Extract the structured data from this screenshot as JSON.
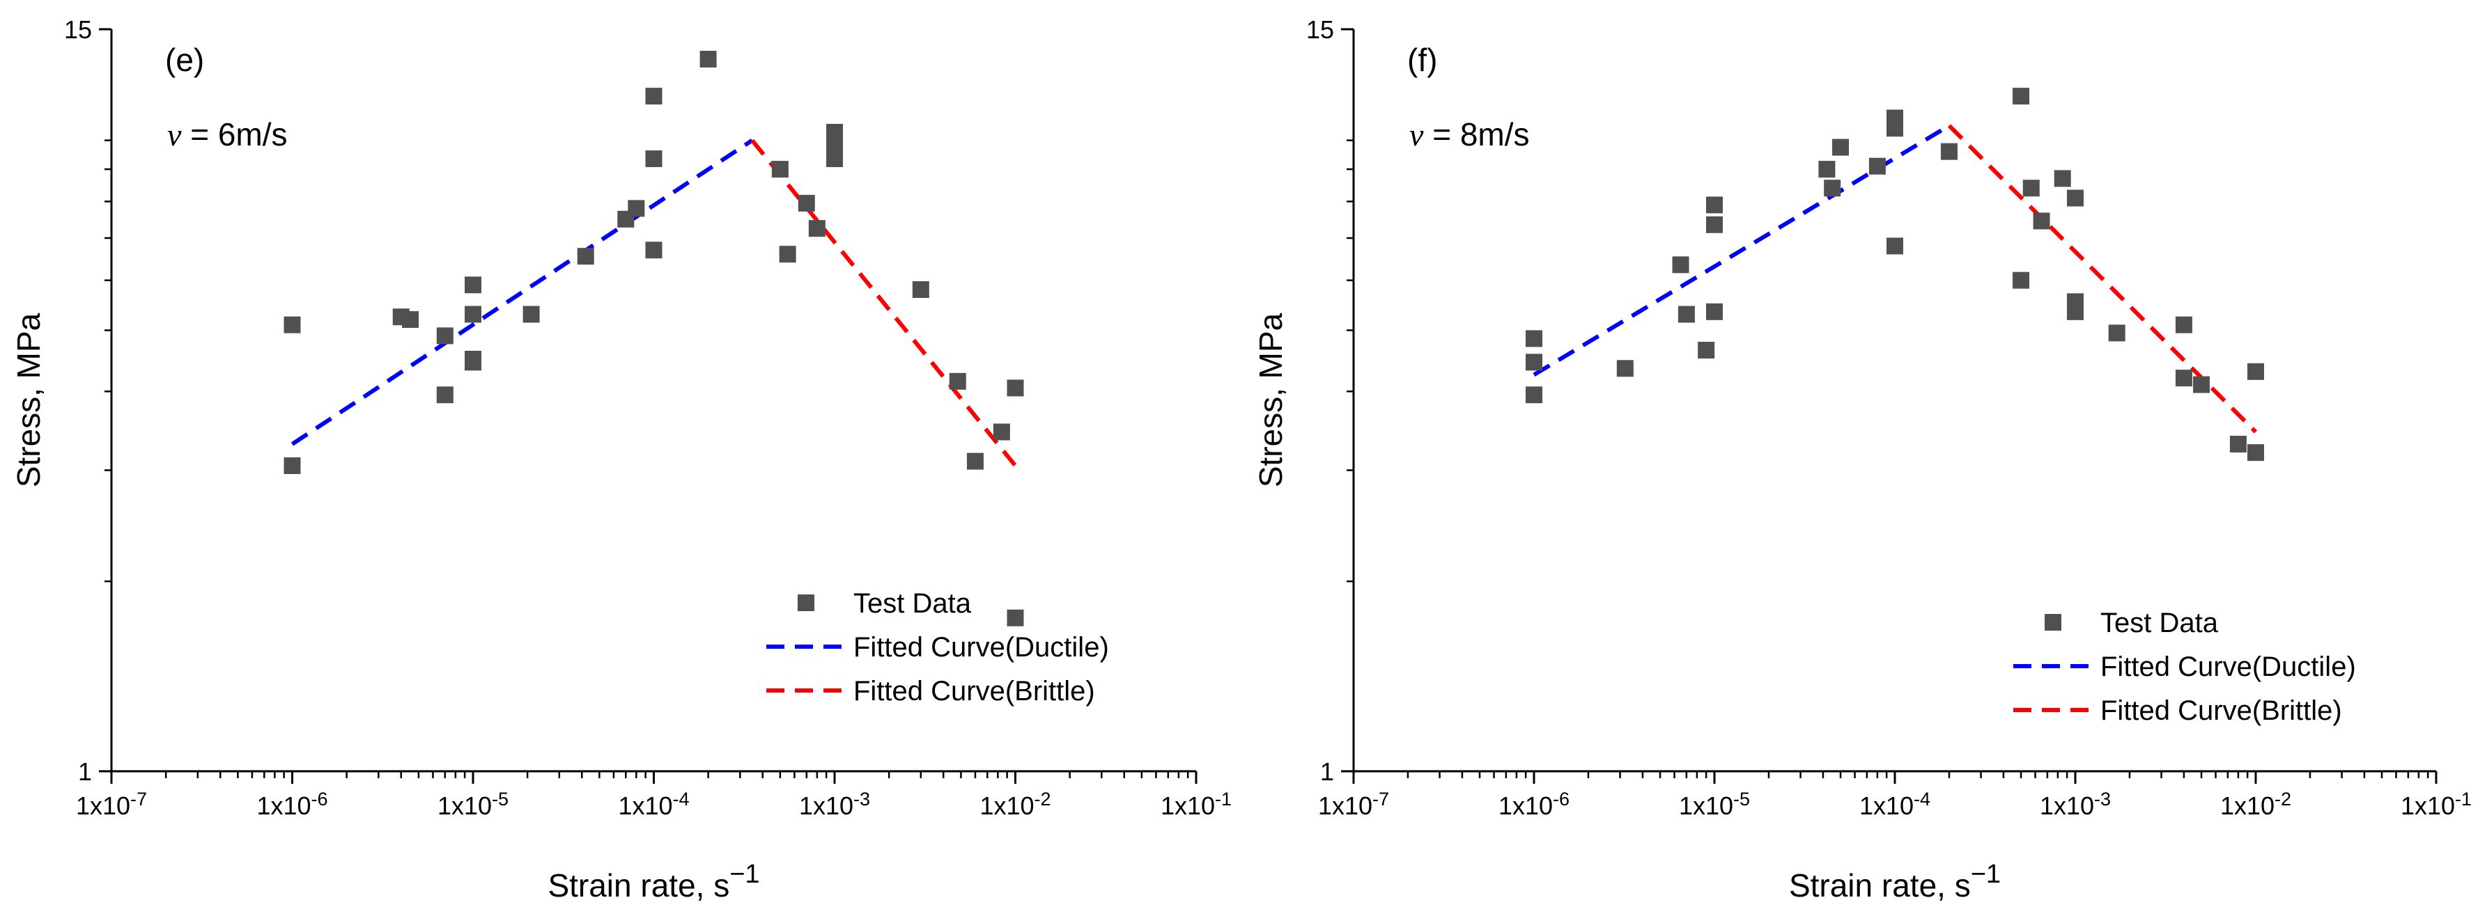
{
  "chart_data": [
    {
      "type": "scatter",
      "panel_label": "(e)",
      "velocity_symbol": "v",
      "velocity_text": " = 6m/s",
      "xlabel": "Strain rate, s",
      "xlabel_sup": "−1",
      "ylabel": "Stress, MPa",
      "xscale": "log",
      "yscale": "log",
      "xlim": [
        1e-07,
        0.1
      ],
      "ylim": [
        1,
        15
      ],
      "x_ticks": [
        1e-07,
        1e-06,
        1e-05,
        0.0001,
        0.001,
        0.01,
        0.1
      ],
      "x_tick_mantissa": [
        "1x10",
        "1x10",
        "1x10",
        "1x10",
        "1x10",
        "1x10",
        "1x10"
      ],
      "x_tick_exponent": [
        "-7",
        "-6",
        "-5",
        "-4",
        "-3",
        "-2",
        "-1"
      ],
      "y_ticks": [
        1,
        15
      ],
      "y_tick_labels": [
        "1",
        "15"
      ],
      "legend": [
        "Test Data",
        "Fitted Curve(Ductile)",
        "Fitted Curve(Brittle)"
      ],
      "legend_position": "lower-right",
      "series": [
        {
          "name": "Test Data",
          "points": [
            [
              1e-06,
              5.1
            ],
            [
              1e-06,
              3.05
            ],
            [
              4e-06,
              5.25
            ],
            [
              4.5e-06,
              5.2
            ],
            [
              7e-06,
              4.9
            ],
            [
              7e-06,
              3.95
            ],
            [
              1e-05,
              5.9
            ],
            [
              1e-05,
              5.3
            ],
            [
              1e-05,
              4.5
            ],
            [
              1e-05,
              4.45
            ],
            [
              2.1e-05,
              5.3
            ],
            [
              4.2e-05,
              6.55
            ],
            [
              7e-05,
              7.5
            ],
            [
              8e-05,
              7.8
            ],
            [
              0.0001,
              11.75
            ],
            [
              0.0001,
              9.35
            ],
            [
              0.0001,
              6.7
            ],
            [
              0.0002,
              13.45
            ],
            [
              0.0005,
              9.0
            ],
            [
              0.00055,
              6.6
            ],
            [
              0.0007,
              7.95
            ],
            [
              0.0008,
              7.25
            ],
            [
              0.001,
              10.3
            ],
            [
              0.001,
              9.75
            ],
            [
              0.001,
              9.35
            ],
            [
              0.003,
              5.8
            ],
            [
              0.0048,
              4.15
            ],
            [
              0.006,
              3.1
            ],
            [
              0.0084,
              3.45
            ],
            [
              0.01,
              4.05
            ],
            [
              0.01,
              1.75
            ]
          ]
        },
        {
          "name": "Fitted Curve(Ductile)",
          "line": [
            [
              1e-06,
              3.3
            ],
            [
              0.00035,
              10.0
            ]
          ]
        },
        {
          "name": "Fitted Curve(Brittle)",
          "line": [
            [
              0.00035,
              10.0
            ],
            [
              0.01,
              3.05
            ]
          ]
        }
      ]
    },
    {
      "type": "scatter",
      "panel_label": "(f)",
      "velocity_symbol": "v",
      "velocity_text": " = 8m/s",
      "xlabel": "Strain rate, s",
      "xlabel_sup": "−1",
      "ylabel": "Stress, MPa",
      "xscale": "log",
      "yscale": "log",
      "xlim": [
        1e-07,
        0.1
      ],
      "ylim": [
        1,
        15
      ],
      "x_ticks": [
        1e-07,
        1e-06,
        1e-05,
        0.0001,
        0.001,
        0.01,
        0.1
      ],
      "x_tick_mantissa": [
        "1x10",
        "1x10",
        "1x10",
        "1x10",
        "1x10",
        "1x10",
        "1x10"
      ],
      "x_tick_exponent": [
        "-7",
        "-6",
        "-5",
        "-4",
        "-3",
        "-2",
        "-1"
      ],
      "y_ticks": [
        1,
        15
      ],
      "y_tick_labels": [
        "1",
        "15"
      ],
      "legend": [
        "Test Data",
        "Fitted Curve(Ductile)",
        "Fitted Curve(Brittle)"
      ],
      "legend_position": "lower-right",
      "series": [
        {
          "name": "Test Data",
          "points": [
            [
              1e-06,
              4.85
            ],
            [
              1e-06,
              4.45
            ],
            [
              1e-06,
              3.95
            ],
            [
              3.2e-06,
              4.35
            ],
            [
              6.5e-06,
              6.35
            ],
            [
              7e-06,
              5.3
            ],
            [
              9e-06,
              4.65
            ],
            [
              1e-05,
              5.35
            ],
            [
              1e-05,
              7.9
            ],
            [
              1e-05,
              7.35
            ],
            [
              4.2e-05,
              9.0
            ],
            [
              4.5e-05,
              8.4
            ],
            [
              5e-05,
              9.75
            ],
            [
              8e-05,
              9.1
            ],
            [
              0.0001,
              10.85
            ],
            [
              0.0001,
              10.45
            ],
            [
              0.0001,
              6.8
            ],
            [
              0.0002,
              9.6
            ],
            [
              0.0005,
              11.75
            ],
            [
              0.0005,
              6.0
            ],
            [
              0.00057,
              8.4
            ],
            [
              0.00065,
              7.45
            ],
            [
              0.00085,
              8.7
            ],
            [
              0.001,
              8.1
            ],
            [
              0.001,
              5.55
            ],
            [
              0.001,
              5.35
            ],
            [
              0.0017,
              4.95
            ],
            [
              0.004,
              5.1
            ],
            [
              0.004,
              4.2
            ],
            [
              0.005,
              4.1
            ],
            [
              0.008,
              3.3
            ],
            [
              0.01,
              4.3
            ],
            [
              0.01,
              3.2
            ]
          ]
        },
        {
          "name": "Fitted Curve(Ductile)",
          "line": [
            [
              1e-06,
              4.25
            ],
            [
              0.0002,
              10.55
            ]
          ]
        },
        {
          "name": "Fitted Curve(Brittle)",
          "line": [
            [
              0.0002,
              10.55
            ],
            [
              0.01,
              3.45
            ]
          ]
        }
      ]
    }
  ]
}
